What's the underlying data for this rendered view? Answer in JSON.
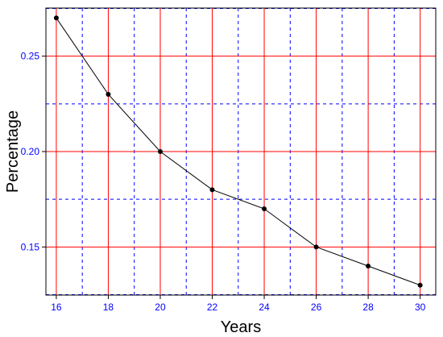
{
  "chart_data": {
    "type": "line",
    "title": "",
    "xlabel": "Years",
    "ylabel": "Percentage",
    "x": [
      16,
      18,
      20,
      22,
      24,
      26,
      28,
      30
    ],
    "series": [
      {
        "values": [
          0.27,
          0.23,
          0.2,
          0.18,
          0.17,
          0.15,
          0.14,
          0.13
        ]
      }
    ],
    "xlim": [
      15.6,
      30.6
    ],
    "ylim": [
      0.1248,
      0.2752
    ],
    "x_ticks": [
      16,
      18,
      20,
      22,
      24,
      26,
      28,
      30
    ],
    "x_tick_labels": [
      "16",
      "18",
      "20",
      "22",
      "24",
      "26",
      "28",
      "30"
    ],
    "y_ticks": [
      0.15,
      0.2,
      0.25
    ],
    "y_tick_labels": [
      "0.15",
      "0.20",
      "0.25"
    ],
    "major_grid": true,
    "minor_grid": true,
    "x_minor_ticks": [
      17,
      19,
      21,
      23,
      25,
      27,
      29
    ],
    "y_minor_ticks": [
      0.125,
      0.175,
      0.225,
      0.275
    ],
    "colors": {
      "major_grid": "#ff0000",
      "minor_grid": "#0000ff",
      "line": "#000000",
      "tick_labels": "#0000ff",
      "axis_titles": "#000000"
    },
    "legend": "none"
  }
}
